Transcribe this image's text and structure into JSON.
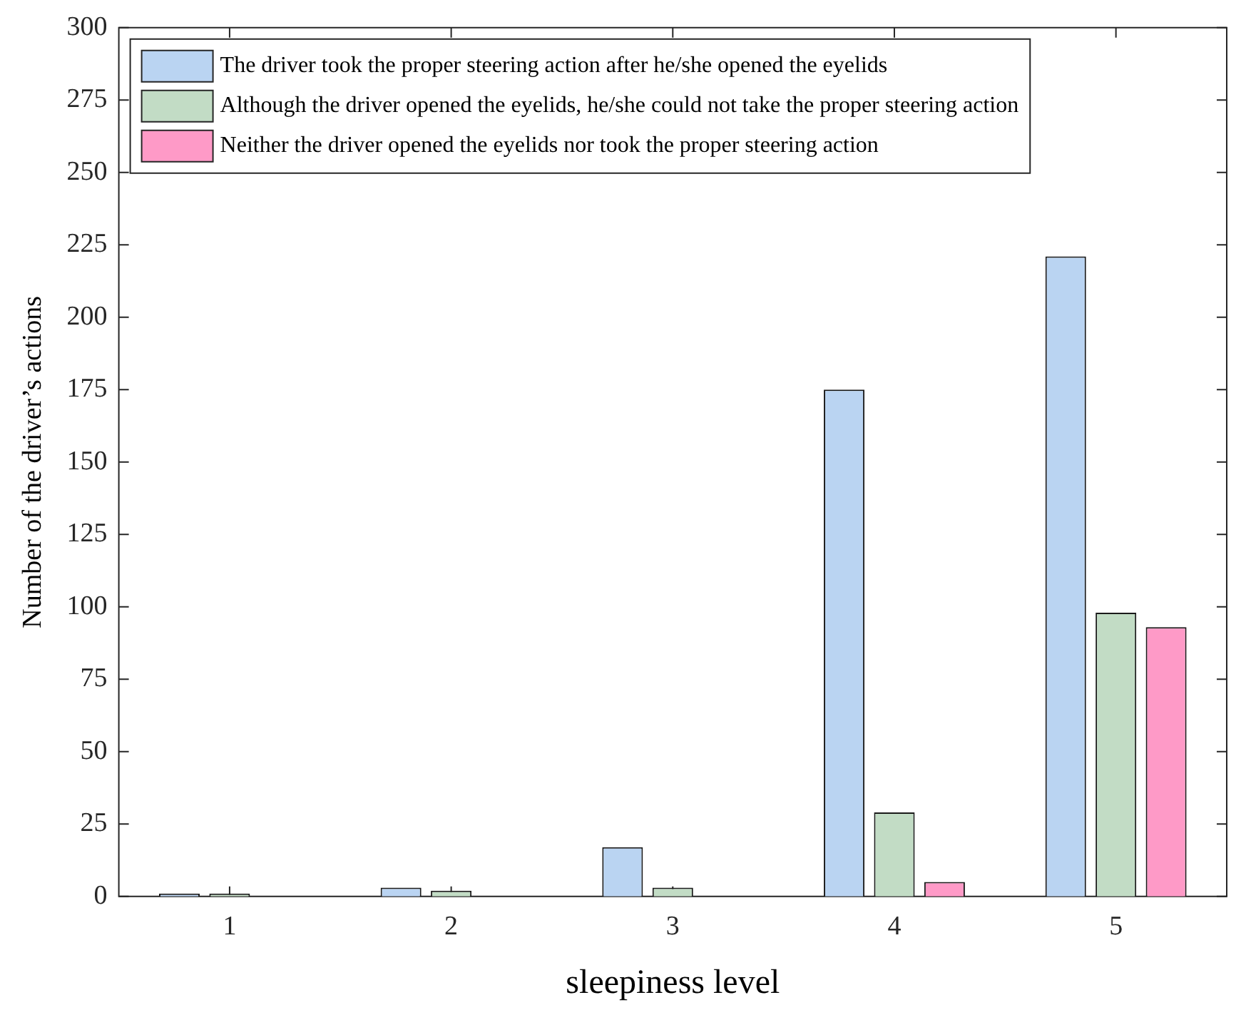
{
  "chart_data": {
    "type": "bar",
    "xlabel": "sleepiness level",
    "ylabel": "Number of the driver’s actions",
    "categories": [
      "1",
      "2",
      "3",
      "4",
      "5"
    ],
    "series": [
      {
        "name": "The driver took the proper steering action after he/she opened the eyelids",
        "color": "#bad4f2",
        "values": [
          1,
          3,
          17,
          175,
          221
        ]
      },
      {
        "name": "Although the driver opened the eyelids, he/she could not take the proper steering action",
        "color": "#c2dcc5",
        "values": [
          1,
          2,
          3,
          29,
          98
        ]
      },
      {
        "name": "Neither the driver opened the eyelids nor took the proper steering action",
        "color": "#fe9ac7",
        "values": [
          0,
          0,
          0,
          5,
          93
        ]
      }
    ],
    "ylim": [
      0,
      300
    ],
    "yticks": [
      0,
      25,
      50,
      75,
      100,
      125,
      150,
      175,
      200,
      225,
      250,
      275,
      300
    ],
    "grid": false,
    "legend": "top left"
  }
}
